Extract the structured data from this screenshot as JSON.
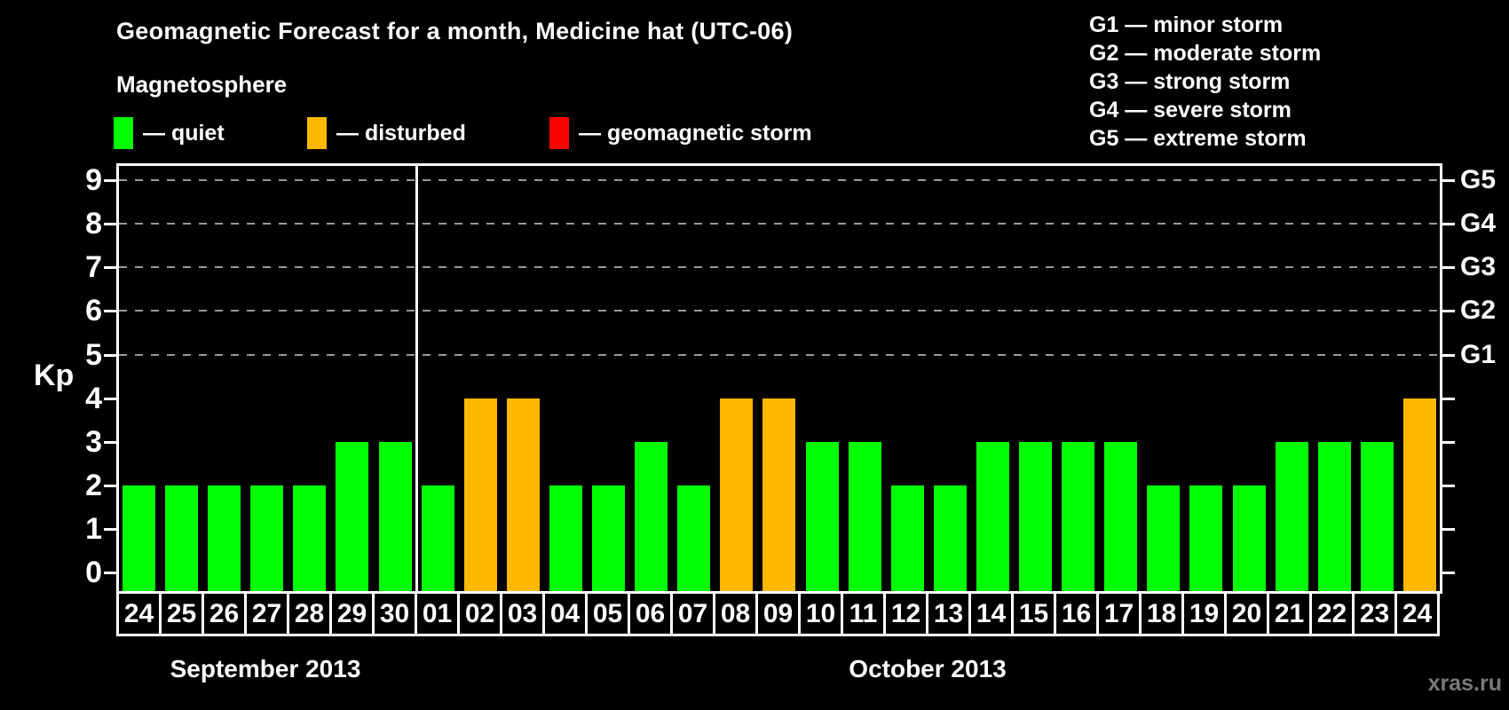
{
  "page": {
    "title": "Geomagnetic Forecast for a month, Medicine hat (UTC-06)",
    "subtitle": "Magnetosphere",
    "watermark": "xras.ru"
  },
  "legend": [
    {
      "status": "quiet",
      "label": "— quiet",
      "color": "#00ff00"
    },
    {
      "status": "disturbed",
      "label": "— disturbed",
      "color": "#ffb800"
    },
    {
      "status": "storm",
      "label": "— geomagnetic storm",
      "color": "#ff0000"
    }
  ],
  "storm_scale": [
    "G1 — minor storm",
    "G2 — moderate storm",
    "G3 — strong storm",
    "G4 — severe storm",
    "G5 — extreme storm"
  ],
  "chart_data": {
    "type": "bar",
    "title": "Geomagnetic Forecast for a month, Medicine hat (UTC-06)",
    "ylabel": "Kp",
    "ylim": [
      0,
      9
    ],
    "yticks": [
      0,
      1,
      2,
      3,
      4,
      5,
      6,
      7,
      8,
      9
    ],
    "gridlines_at_kp": [
      5,
      6,
      7,
      8,
      9
    ],
    "grid": "dashed",
    "right_axis": [
      {
        "label": "G1",
        "kp": 5
      },
      {
        "label": "G2",
        "kp": 6
      },
      {
        "label": "G3",
        "kp": 7
      },
      {
        "label": "G4",
        "kp": 8
      },
      {
        "label": "G5",
        "kp": 9
      }
    ],
    "groups": [
      {
        "label": "September 2013",
        "start_index": 0,
        "count": 7
      },
      {
        "label": "October 2013",
        "start_index": 7,
        "count": 24
      }
    ],
    "bars": [
      {
        "day": "24",
        "kp": 2,
        "status": "quiet"
      },
      {
        "day": "25",
        "kp": 2,
        "status": "quiet"
      },
      {
        "day": "26",
        "kp": 2,
        "status": "quiet"
      },
      {
        "day": "27",
        "kp": 2,
        "status": "quiet"
      },
      {
        "day": "28",
        "kp": 2,
        "status": "quiet"
      },
      {
        "day": "29",
        "kp": 3,
        "status": "quiet"
      },
      {
        "day": "30",
        "kp": 3,
        "status": "quiet"
      },
      {
        "day": "01",
        "kp": 2,
        "status": "quiet"
      },
      {
        "day": "02",
        "kp": 4,
        "status": "disturbed"
      },
      {
        "day": "03",
        "kp": 4,
        "status": "disturbed"
      },
      {
        "day": "04",
        "kp": 2,
        "status": "quiet"
      },
      {
        "day": "05",
        "kp": 2,
        "status": "quiet"
      },
      {
        "day": "06",
        "kp": 3,
        "status": "quiet"
      },
      {
        "day": "07",
        "kp": 2,
        "status": "quiet"
      },
      {
        "day": "08",
        "kp": 4,
        "status": "disturbed"
      },
      {
        "day": "09",
        "kp": 4,
        "status": "disturbed"
      },
      {
        "day": "10",
        "kp": 3,
        "status": "quiet"
      },
      {
        "day": "11",
        "kp": 3,
        "status": "quiet"
      },
      {
        "day": "12",
        "kp": 2,
        "status": "quiet"
      },
      {
        "day": "13",
        "kp": 2,
        "status": "quiet"
      },
      {
        "day": "14",
        "kp": 3,
        "status": "quiet"
      },
      {
        "day": "15",
        "kp": 3,
        "status": "quiet"
      },
      {
        "day": "16",
        "kp": 3,
        "status": "quiet"
      },
      {
        "day": "17",
        "kp": 3,
        "status": "quiet"
      },
      {
        "day": "18",
        "kp": 2,
        "status": "quiet"
      },
      {
        "day": "19",
        "kp": 2,
        "status": "quiet"
      },
      {
        "day": "20",
        "kp": 2,
        "status": "quiet"
      },
      {
        "day": "21",
        "kp": 3,
        "status": "quiet"
      },
      {
        "day": "22",
        "kp": 3,
        "status": "quiet"
      },
      {
        "day": "23",
        "kp": 3,
        "status": "quiet"
      },
      {
        "day": "24",
        "kp": 4,
        "status": "disturbed"
      }
    ]
  },
  "colors": {
    "background": "#000000",
    "axis": "#ffffff",
    "grid": "#999999",
    "quiet": "#00ff00",
    "disturbed": "#ffb800",
    "storm": "#ff0000",
    "watermark": "#7a7a7a"
  }
}
